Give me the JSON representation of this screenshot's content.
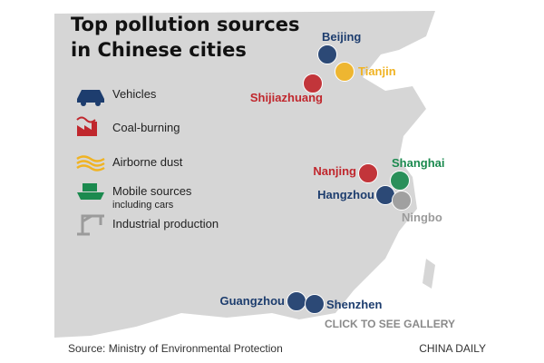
{
  "header": {
    "title_lines": [
      "Top pollution sources",
      "in Chinese cities"
    ]
  },
  "legend": [
    {
      "label": "Vehicles",
      "color": "#1d3d6e"
    },
    {
      "label": "Coal-burning",
      "color": "#c0272d"
    },
    {
      "label": "Airborne dust",
      "color": "#f0b323"
    },
    {
      "label": "Mobile sources",
      "sublabel": "including cars",
      "color": "#1b8a4f"
    },
    {
      "label": "Industrial production",
      "color": "#9b9b9b"
    }
  ],
  "cities": [
    {
      "name": "Beijing",
      "color": "#1d3d6e"
    },
    {
      "name": "Tianjin",
      "color": "#f0b323"
    },
    {
      "name": "Shijiazhuang",
      "color": "#c0272d"
    },
    {
      "name": "Nanjing",
      "color": "#c0272d"
    },
    {
      "name": "Shanghai",
      "color": "#1b8a4f"
    },
    {
      "name": "Hangzhou",
      "color": "#1d3d6e"
    },
    {
      "name": "Ningbo",
      "color": "#9b9b9b"
    },
    {
      "name": "Guangzhou",
      "color": "#1d3d6e"
    },
    {
      "name": "Shenzhen",
      "color": "#1d3d6e"
    }
  ],
  "gallery_link": "CLICK TO SEE GALLERY",
  "footer": {
    "source": "Source: Ministry of Environmental Protection",
    "credit": "CHINA DAILY"
  }
}
